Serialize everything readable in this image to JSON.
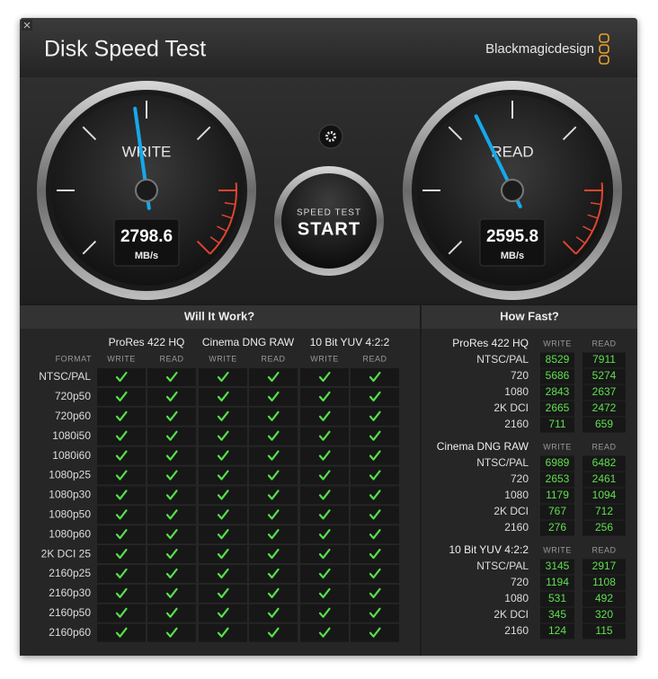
{
  "window": {
    "title": "Disk Speed Test",
    "brand": "Blackmagicdesign"
  },
  "gauges": [
    {
      "label": "WRITE",
      "value": 2798.6,
      "unit": "MB/s"
    },
    {
      "label": "READ",
      "value": 2595.8,
      "unit": "MB/s"
    }
  ],
  "start_button": {
    "caption": "SPEED TEST",
    "label": "START"
  },
  "will_it_work": {
    "title": "Will It Work?",
    "format_header": "FORMAT",
    "codecs": [
      "ProRes 422 HQ",
      "Cinema DNG RAW",
      "10 Bit YUV 4:2:2"
    ],
    "columns": [
      "WRITE",
      "READ"
    ],
    "rows": [
      "NTSC/PAL",
      "720p50",
      "720p60",
      "1080i50",
      "1080i60",
      "1080p25",
      "1080p30",
      "1080p50",
      "1080p60",
      "2K DCI 25",
      "2160p25",
      "2160p30",
      "2160p50",
      "2160p60"
    ]
  },
  "how_fast": {
    "title": "How Fast?",
    "columns": [
      "WRITE",
      "READ"
    ],
    "sections": [
      {
        "codec": "ProRes 422 HQ",
        "rows": [
          {
            "format": "NTSC/PAL",
            "write": 8529,
            "read": 7911
          },
          {
            "format": "720",
            "write": 5686,
            "read": 5274
          },
          {
            "format": "1080",
            "write": 2843,
            "read": 2637
          },
          {
            "format": "2K DCI",
            "write": 2665,
            "read": 2472
          },
          {
            "format": "2160",
            "write": 711,
            "read": 659
          }
        ]
      },
      {
        "codec": "Cinema DNG RAW",
        "rows": [
          {
            "format": "NTSC/PAL",
            "write": 6989,
            "read": 6482
          },
          {
            "format": "720",
            "write": 2653,
            "read": 2461
          },
          {
            "format": "1080",
            "write": 1179,
            "read": 1094
          },
          {
            "format": "2K DCI",
            "write": 767,
            "read": 712
          },
          {
            "format": "2160",
            "write": 276,
            "read": 256
          }
        ]
      },
      {
        "codec": "10 Bit YUV 4:2:2",
        "rows": [
          {
            "format": "NTSC/PAL",
            "write": 3145,
            "read": 2917
          },
          {
            "format": "720",
            "write": 1194,
            "read": 1108
          },
          {
            "format": "1080",
            "write": 531,
            "read": 492
          },
          {
            "format": "2K DCI",
            "write": 345,
            "read": 320
          },
          {
            "format": "2160",
            "write": 124,
            "read": 115
          }
        ]
      }
    ]
  }
}
